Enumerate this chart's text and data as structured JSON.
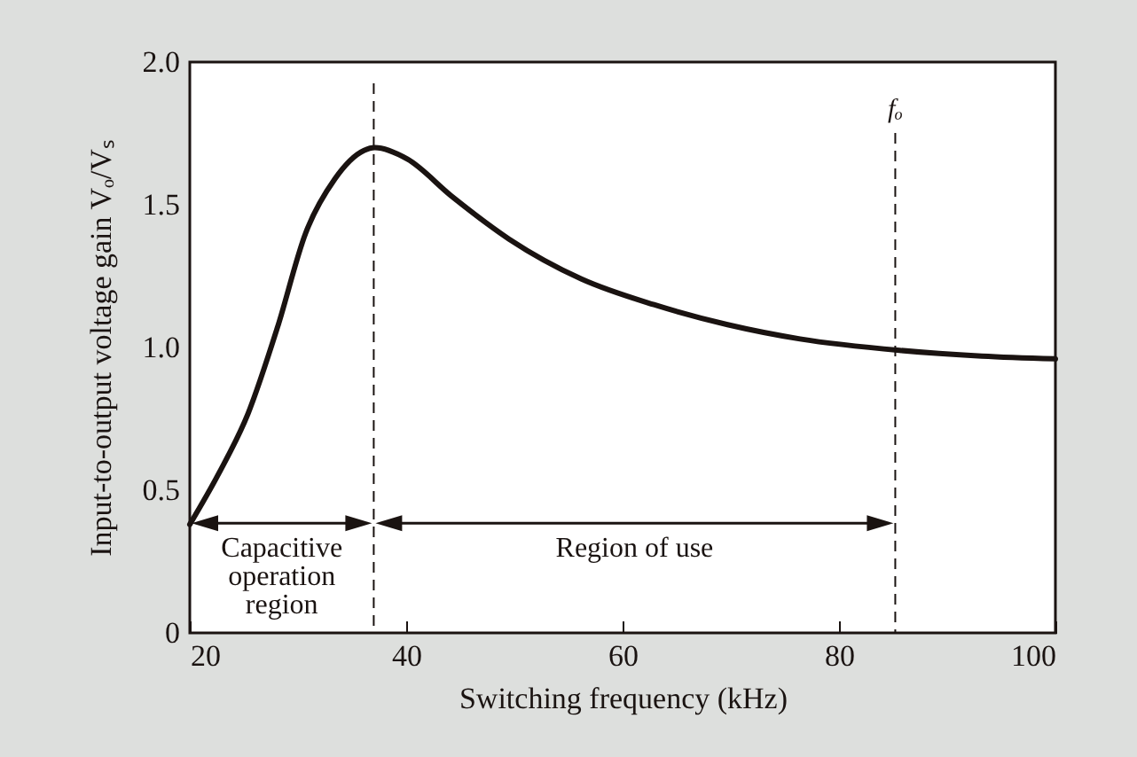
{
  "chart_data": {
    "type": "line",
    "xlabel": "Switching frequency (kHz)",
    "ylabel": "Input-to-output voltage gain Vₒ/Vₛ",
    "x": [
      20,
      22.7,
      25.4,
      28.1,
      30.7,
      33.4,
      36.1,
      37.1,
      40.1,
      44.2,
      49.5,
      56.2,
      62.9,
      69.7,
      76.4,
      85.6,
      93.2,
      100
    ],
    "series": [
      {
        "color": "#1a1311",
        "values": [
          0.38,
          0.56,
          0.77,
          1.07,
          1.4,
          1.59,
          1.69,
          1.7,
          1.66,
          1.53,
          1.38,
          1.24,
          1.15,
          1.08,
          1.03,
          0.99,
          0.97,
          0.96
        ]
      }
    ],
    "xlim": [
      20,
      100
    ],
    "xticks": [
      20,
      40,
      60,
      80,
      100
    ],
    "ylim": [
      0,
      2
    ],
    "yticks": [
      0,
      0.5,
      {
        "value": 1,
        "label": "1.0"
      },
      1.5,
      {
        "value": 2,
        "label": "2.0"
      }
    ],
    "grid": false,
    "line_style": "solid",
    "marker": "none",
    "ref_lines": [
      {
        "axis": "x",
        "value": 37,
        "label": null,
        "line_style": "dashed"
      },
      {
        "axis": "x",
        "value": 85.2,
        "label": "fₒ",
        "line_style": "dashed"
      }
    ],
    "annotations": [
      "Capacitive operation region",
      "Region of use"
    ]
  }
}
